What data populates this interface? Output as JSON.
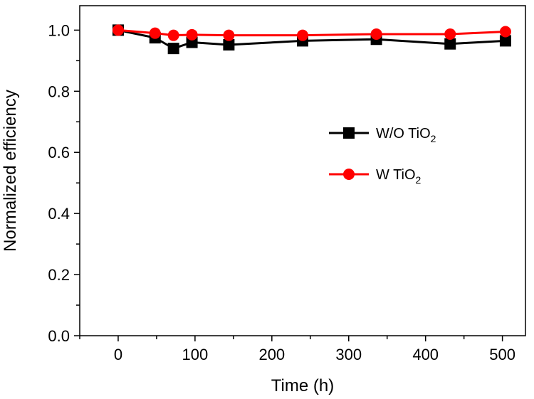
{
  "chart_data": {
    "type": "line",
    "title": "",
    "xlabel": "Time (h)",
    "ylabel": "Normalized efficiency",
    "xlim": [
      -50,
      530
    ],
    "ylim": [
      0.0,
      1.08
    ],
    "xticks": [
      0,
      100,
      200,
      300,
      400,
      500
    ],
    "yticks": [
      0.0,
      0.2,
      0.4,
      0.6,
      0.8,
      1.0
    ],
    "xtick_labels": [
      "0",
      "100",
      "200",
      "300",
      "400",
      "500"
    ],
    "ytick_labels": [
      "0.0",
      "0.2",
      "0.4",
      "0.6",
      "0.8",
      "1.0"
    ],
    "grid": false,
    "legend_position": "right-middle",
    "series": [
      {
        "name": "W/O TiO2",
        "legend_main": "W/O TiO",
        "legend_sub": "2",
        "color": "#000000",
        "marker": "square",
        "x": [
          0,
          48,
          72,
          96,
          144,
          240,
          336,
          432,
          504
        ],
        "y": [
          1.0,
          0.975,
          0.94,
          0.96,
          0.952,
          0.965,
          0.97,
          0.955,
          0.965
        ]
      },
      {
        "name": "W TiO2",
        "legend_main": "W TiO",
        "legend_sub": "2",
        "color": "#ff0000",
        "marker": "circle",
        "x": [
          0,
          48,
          72,
          96,
          144,
          240,
          336,
          432,
          504
        ],
        "y": [
          1.0,
          0.99,
          0.983,
          0.985,
          0.983,
          0.983,
          0.987,
          0.987,
          0.995
        ]
      }
    ]
  }
}
